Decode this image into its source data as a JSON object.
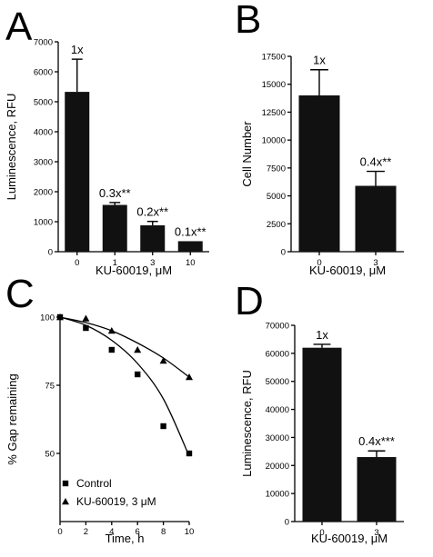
{
  "chart_data": [
    {
      "panel": "A",
      "type": "bar",
      "categories": [
        "0",
        "1",
        "3",
        "10"
      ],
      "values": [
        5330,
        1560,
        880,
        350
      ],
      "errors": [
        1090,
        80,
        130,
        0
      ],
      "annotations": [
        "1x",
        "0.3x**",
        "0.2x**",
        "0.1x**"
      ],
      "xlabel": "KU-60019, μM",
      "ylabel": "Luminescence, RFU",
      "ylim": [
        0,
        7000
      ],
      "yticks": [
        0,
        1000,
        2000,
        3000,
        4000,
        5000,
        6000,
        7000
      ],
      "bar_color": "#111111"
    },
    {
      "panel": "B",
      "type": "bar",
      "categories": [
        "0",
        "3"
      ],
      "values": [
        14000,
        5900
      ],
      "errors": [
        2300,
        1300
      ],
      "annotations": [
        "1x",
        "0.4x**"
      ],
      "xlabel": "KU-60019, μM",
      "ylabel": "Cell Number",
      "ylim": [
        0,
        17500
      ],
      "yticks": [
        0,
        2500,
        5000,
        7500,
        10000,
        12500,
        15000,
        17500
      ],
      "bar_color": "#111111"
    },
    {
      "panel": "C",
      "type": "scatter",
      "xlabel": "Time, h",
      "ylabel": "% Gap remaining",
      "xlim": [
        0,
        10
      ],
      "ylim": [
        25,
        100
      ],
      "xticks": [
        0,
        2,
        4,
        6,
        8,
        10
      ],
      "yticks": [
        50,
        75,
        100
      ],
      "series": [
        {
          "name": "Control",
          "marker": "square",
          "x": [
            0,
            2,
            4,
            6,
            8,
            10
          ],
          "y": [
            100,
            96,
            88,
            79,
            60,
            50
          ],
          "fit": [
            [
              0,
              100
            ],
            [
              2,
              97
            ],
            [
              4,
              91.5
            ],
            [
              6,
              83
            ],
            [
              8,
              70
            ],
            [
              10,
              49
            ]
          ]
        },
        {
          "name": "KU-60019, 3 μM",
          "marker": "triangle",
          "x": [
            0,
            2,
            4,
            6,
            8,
            10
          ],
          "y": [
            100,
            99.5,
            95,
            88,
            84,
            78
          ],
          "fit": [
            [
              0,
              100
            ],
            [
              2,
              98
            ],
            [
              4,
              95
            ],
            [
              6,
              90.5
            ],
            [
              8,
              85
            ],
            [
              10,
              78
            ]
          ]
        }
      ],
      "legend_position": "bottom-left"
    },
    {
      "panel": "D",
      "type": "bar",
      "categories": [
        "0",
        "3"
      ],
      "values": [
        62000,
        23000
      ],
      "errors": [
        1200,
        2200
      ],
      "annotations": [
        "1x",
        "0.4x***"
      ],
      "xlabel": "KU-60019, μM",
      "ylabel": "Luminescence, RFU",
      "ylim": [
        0,
        70000
      ],
      "yticks": [
        0,
        10000,
        20000,
        30000,
        40000,
        50000,
        60000,
        70000
      ],
      "bar_color": "#111111"
    }
  ]
}
